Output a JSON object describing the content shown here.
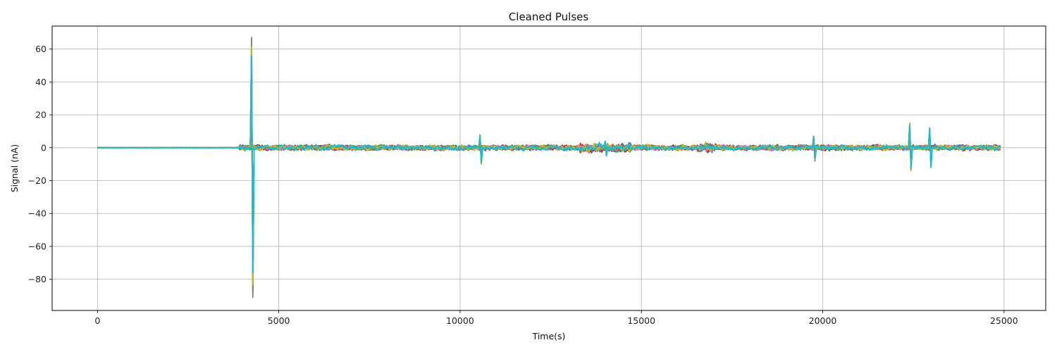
{
  "chart_data": {
    "type": "line",
    "title": "Cleaned Pulses",
    "xlabel": "Time(s)",
    "ylabel": "Signal (nA)",
    "xlim": [
      -1250,
      26150
    ],
    "ylim": [
      -99,
      74
    ],
    "xticks": [
      0,
      5000,
      10000,
      15000,
      20000,
      25000
    ],
    "yticks": [
      -80,
      -60,
      -40,
      -20,
      0,
      20,
      40,
      60
    ],
    "grid": true,
    "legend": "none",
    "series_colors": [
      "#1f77b4",
      "#ff7f0e",
      "#2ca02c",
      "#d62728",
      "#9467bd",
      "#8c564b",
      "#e377c2",
      "#7f7f7f",
      "#bcbd22",
      "#17becf"
    ],
    "series_x_range": [
      0,
      24900
    ],
    "features": [
      {
        "t": 4250,
        "max": 67,
        "min": -91
      },
      {
        "t": 10550,
        "max": 8,
        "min": -10
      },
      {
        "t": 14000,
        "max": 4,
        "min": -5
      },
      {
        "t": 19750,
        "max": 7,
        "min": -8
      },
      {
        "t": 22400,
        "max": 15,
        "min": -14
      },
      {
        "t": 22950,
        "max": 12,
        "min": -12
      }
    ]
  }
}
